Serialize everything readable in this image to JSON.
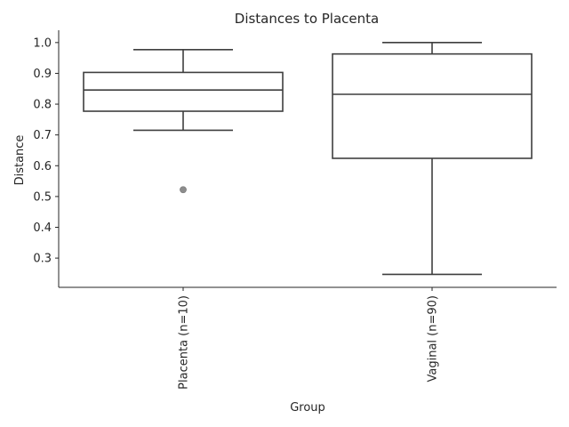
{
  "chart_data": {
    "type": "box",
    "title": "Distances to Placenta",
    "xlabel": "Group",
    "ylabel": "Distance",
    "ylim": [
      0.205,
      1.04
    ],
    "yticks": [
      "0.3",
      "0.4",
      "0.5",
      "0.6",
      "0.7",
      "0.8",
      "0.9",
      "1.0"
    ],
    "categories": [
      "Placenta (n=10)",
      "Vaginal (n=90)"
    ],
    "boxes": [
      {
        "whisker_low": 0.715,
        "q1": 0.777,
        "median": 0.846,
        "q3": 0.903,
        "whisker_high": 0.977,
        "outliers": [
          0.522
        ]
      },
      {
        "whisker_low": 0.247,
        "q1": 0.624,
        "median": 0.832,
        "q3": 0.963,
        "whisker_high": 1.0,
        "outliers": []
      }
    ],
    "colors": {
      "box_line": "#3f3f3f",
      "outlier": "#8c8c8c",
      "axis": "#262626"
    },
    "grid": false,
    "spines": "left-bottom"
  }
}
